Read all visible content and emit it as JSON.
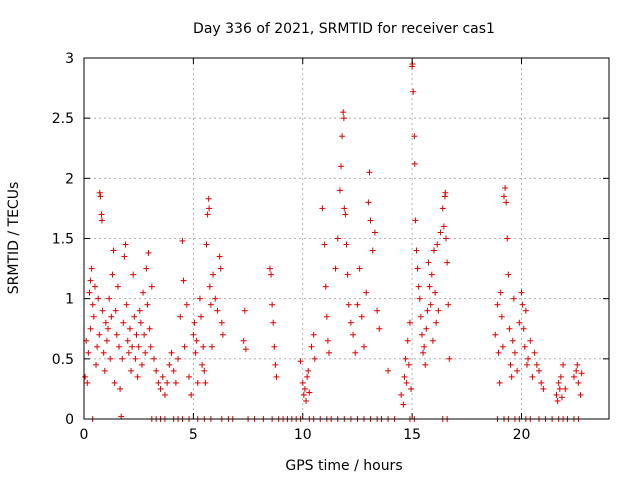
{
  "chart_data": {
    "type": "scatter",
    "title": "Day 336 of 2021, SRMTID for receiver cas1",
    "xlabel": "GPS time / hours",
    "ylabel": "SRMTID / TECUs",
    "xlim": [
      0,
      24
    ],
    "ylim": [
      0,
      3
    ],
    "xticks": [
      0,
      5,
      10,
      15,
      20
    ],
    "yticks": [
      0,
      0.5,
      1,
      1.5,
      2,
      2.5,
      3
    ],
    "xtick_labels": [
      "0",
      "5",
      "10",
      "15",
      "20"
    ],
    "ytick_labels": [
      "0",
      "0.5",
      "1",
      "1.5",
      "2",
      "2.5",
      "3"
    ],
    "grid": true,
    "legend": "none",
    "marker": "+",
    "color": "#dd0000",
    "series": [
      {
        "name": "cas1",
        "points": [
          [
            0.05,
            0.35
          ],
          [
            0.1,
            0.65
          ],
          [
            0.15,
            0.3
          ],
          [
            0.2,
            0.55
          ],
          [
            0.25,
            1.05
          ],
          [
            0.3,
            1.15
          ],
          [
            0.3,
            0.75
          ],
          [
            0.35,
            1.25
          ],
          [
            0.4,
            0.95
          ],
          [
            0.45,
            0.85
          ],
          [
            0.5,
            1.1
          ],
          [
            0.55,
            0.45
          ],
          [
            0.6,
            0.6
          ],
          [
            0.65,
            1.0
          ],
          [
            0.7,
            0.7
          ],
          [
            0.72,
            1.88
          ],
          [
            0.75,
            1.85
          ],
          [
            0.8,
            1.7
          ],
          [
            0.82,
            1.65
          ],
          [
            0.85,
            0.9
          ],
          [
            0.9,
            0.55
          ],
          [
            0.95,
            0.4
          ],
          [
            1.0,
            0.8
          ],
          [
            1.05,
            0.65
          ],
          [
            1.1,
            0.75
          ],
          [
            1.15,
            1.0
          ],
          [
            1.2,
            0.5
          ],
          [
            1.25,
            0.85
          ],
          [
            1.3,
            1.2
          ],
          [
            1.35,
            1.4
          ],
          [
            1.4,
            0.3
          ],
          [
            1.45,
            0.9
          ],
          [
            1.5,
            0.7
          ],
          [
            1.55,
            1.1
          ],
          [
            1.6,
            0.6
          ],
          [
            1.65,
            0.25
          ],
          [
            1.7,
            0.02
          ],
          [
            1.75,
            0.5
          ],
          [
            1.8,
            0.8
          ],
          [
            1.85,
            1.35
          ],
          [
            1.9,
            1.45
          ],
          [
            1.95,
            0.95
          ],
          [
            2.0,
            0.65
          ],
          [
            2.05,
            0.55
          ],
          [
            2.1,
            0.75
          ],
          [
            2.15,
            0.4
          ],
          [
            2.2,
            0.6
          ],
          [
            2.25,
            1.2
          ],
          [
            2.3,
            0.85
          ],
          [
            2.35,
            0.5
          ],
          [
            2.4,
            0.7
          ],
          [
            2.45,
            0.35
          ],
          [
            2.5,
            0.6
          ],
          [
            2.55,
            0.9
          ],
          [
            2.6,
            0.8
          ],
          [
            2.65,
            0.45
          ],
          [
            2.7,
            1.05
          ],
          [
            2.75,
            0.7
          ],
          [
            2.8,
            0.55
          ],
          [
            2.85,
            1.25
          ],
          [
            2.9,
            0.95
          ],
          [
            2.95,
            1.38
          ],
          [
            3.0,
            0.75
          ],
          [
            3.05,
            0.6
          ],
          [
            3.1,
            1.1
          ],
          [
            3.2,
            0.5
          ],
          [
            3.3,
            0.4
          ],
          [
            3.4,
            0.3
          ],
          [
            3.5,
            0.25
          ],
          [
            3.6,
            0.35
          ],
          [
            3.7,
            0.2
          ],
          [
            3.8,
            0.3
          ],
          [
            3.9,
            0.45
          ],
          [
            4.0,
            0.55
          ],
          [
            4.1,
            0.4
          ],
          [
            4.2,
            0.3
          ],
          [
            4.3,
            0.5
          ],
          [
            4.4,
            0.85
          ],
          [
            4.5,
            1.48
          ],
          [
            4.55,
            1.15
          ],
          [
            4.6,
            0.6
          ],
          [
            4.7,
            0.95
          ],
          [
            4.8,
            0.35
          ],
          [
            4.9,
            0.2
          ],
          [
            5.0,
            0.7
          ],
          [
            5.05,
            0.8
          ],
          [
            5.1,
            0.55
          ],
          [
            5.15,
            0.65
          ],
          [
            5.2,
            0.3
          ],
          [
            5.3,
            1.0
          ],
          [
            5.35,
            0.85
          ],
          [
            5.4,
            0.45
          ],
          [
            5.45,
            0.6
          ],
          [
            5.5,
            0.4
          ],
          [
            5.55,
            0.3
          ],
          [
            5.6,
            1.45
          ],
          [
            5.65,
            1.7
          ],
          [
            5.7,
            1.83
          ],
          [
            5.72,
            1.75
          ],
          [
            5.75,
            1.1
          ],
          [
            5.8,
            0.95
          ],
          [
            5.85,
            0.6
          ],
          [
            5.9,
            1.2
          ],
          [
            6.0,
            1.0
          ],
          [
            6.1,
            0.9
          ],
          [
            6.2,
            1.35
          ],
          [
            6.25,
            1.25
          ],
          [
            6.3,
            0.8
          ],
          [
            6.35,
            0.7
          ],
          [
            7.3,
            0.65
          ],
          [
            7.35,
            0.9
          ],
          [
            7.4,
            0.58
          ],
          [
            8.5,
            1.25
          ],
          [
            8.55,
            1.2
          ],
          [
            8.6,
            0.95
          ],
          [
            8.65,
            0.8
          ],
          [
            8.7,
            0.6
          ],
          [
            8.75,
            0.45
          ],
          [
            8.8,
            0.35
          ],
          [
            9.9,
            0.48
          ],
          [
            10.0,
            0.3
          ],
          [
            10.05,
            0.2
          ],
          [
            10.1,
            0.25
          ],
          [
            10.15,
            0.15
          ],
          [
            10.2,
            0.35
          ],
          [
            10.25,
            0.4
          ],
          [
            10.3,
            0.22
          ],
          [
            10.4,
            0.6
          ],
          [
            10.5,
            0.7
          ],
          [
            10.55,
            0.5
          ],
          [
            10.9,
            1.75
          ],
          [
            11.0,
            1.45
          ],
          [
            11.05,
            1.1
          ],
          [
            11.1,
            0.85
          ],
          [
            11.15,
            0.65
          ],
          [
            11.2,
            0.55
          ],
          [
            11.5,
            1.25
          ],
          [
            11.6,
            1.5
          ],
          [
            11.7,
            1.9
          ],
          [
            11.75,
            2.1
          ],
          [
            11.8,
            2.35
          ],
          [
            11.85,
            2.55
          ],
          [
            11.88,
            2.5
          ],
          [
            11.9,
            1.75
          ],
          [
            11.95,
            1.7
          ],
          [
            12.0,
            1.45
          ],
          [
            12.05,
            1.2
          ],
          [
            12.1,
            0.95
          ],
          [
            12.2,
            0.8
          ],
          [
            12.3,
            0.7
          ],
          [
            12.4,
            0.55
          ],
          [
            12.5,
            0.95
          ],
          [
            12.6,
            1.25
          ],
          [
            12.7,
            0.85
          ],
          [
            12.8,
            0.6
          ],
          [
            12.9,
            1.05
          ],
          [
            13.0,
            1.8
          ],
          [
            13.05,
            2.05
          ],
          [
            13.1,
            1.65
          ],
          [
            13.2,
            1.4
          ],
          [
            13.3,
            1.55
          ],
          [
            13.4,
            0.9
          ],
          [
            13.5,
            0.75
          ],
          [
            13.9,
            0.4
          ],
          [
            14.5,
            0.2
          ],
          [
            14.6,
            0.12
          ],
          [
            14.65,
            0.35
          ],
          [
            14.7,
            0.5
          ],
          [
            14.75,
            0.3
          ],
          [
            14.8,
            0.65
          ],
          [
            14.85,
            0.45
          ],
          [
            14.9,
            0.8
          ],
          [
            14.95,
            0.25
          ],
          [
            15.0,
            2.93
          ],
          [
            15.02,
            2.95
          ],
          [
            15.05,
            2.72
          ],
          [
            15.1,
            2.35
          ],
          [
            15.12,
            2.12
          ],
          [
            15.15,
            1.65
          ],
          [
            15.2,
            1.4
          ],
          [
            15.25,
            1.25
          ],
          [
            15.3,
            1.1
          ],
          [
            15.35,
            1.0
          ],
          [
            15.4,
            0.85
          ],
          [
            15.45,
            0.7
          ],
          [
            15.5,
            0.55
          ],
          [
            15.55,
            0.6
          ],
          [
            15.6,
            0.45
          ],
          [
            15.65,
            0.75
          ],
          [
            15.7,
            0.9
          ],
          [
            15.75,
            1.3
          ],
          [
            15.8,
            1.1
          ],
          [
            15.85,
            0.95
          ],
          [
            15.9,
            1.2
          ],
          [
            15.95,
            0.65
          ],
          [
            16.0,
            1.4
          ],
          [
            16.05,
            1.05
          ],
          [
            16.1,
            0.8
          ],
          [
            16.15,
            1.45
          ],
          [
            16.2,
            0.9
          ],
          [
            16.3,
            1.55
          ],
          [
            16.4,
            1.75
          ],
          [
            16.45,
            1.6
          ],
          [
            16.5,
            1.85
          ],
          [
            16.52,
            1.88
          ],
          [
            16.55,
            1.5
          ],
          [
            16.6,
            1.3
          ],
          [
            16.65,
            0.95
          ],
          [
            16.7,
            0.5
          ],
          [
            18.8,
            0.7
          ],
          [
            18.9,
            0.95
          ],
          [
            18.95,
            0.55
          ],
          [
            19.0,
            0.3
          ],
          [
            19.05,
            1.05
          ],
          [
            19.1,
            0.85
          ],
          [
            19.15,
            0.6
          ],
          [
            19.2,
            1.85
          ],
          [
            19.25,
            1.92
          ],
          [
            19.3,
            1.8
          ],
          [
            19.35,
            1.5
          ],
          [
            19.4,
            1.2
          ],
          [
            19.45,
            0.75
          ],
          [
            19.5,
            0.45
          ],
          [
            19.55,
            0.35
          ],
          [
            19.6,
            0.65
          ],
          [
            19.65,
            1.0
          ],
          [
            19.7,
            0.55
          ],
          [
            19.8,
            0.4
          ],
          [
            19.9,
            0.8
          ],
          [
            20.0,
            1.05
          ],
          [
            20.05,
            0.95
          ],
          [
            20.1,
            0.75
          ],
          [
            20.15,
            0.6
          ],
          [
            20.2,
            0.9
          ],
          [
            20.25,
            0.45
          ],
          [
            20.3,
            0.5
          ],
          [
            20.4,
            0.65
          ],
          [
            20.5,
            0.35
          ],
          [
            20.6,
            0.55
          ],
          [
            20.7,
            0.45
          ],
          [
            20.8,
            0.4
          ],
          [
            20.9,
            0.3
          ],
          [
            21.0,
            0.25
          ],
          [
            21.6,
            0.2
          ],
          [
            21.65,
            0.15
          ],
          [
            21.7,
            0.3
          ],
          [
            21.75,
            0.25
          ],
          [
            21.8,
            0.35
          ],
          [
            21.85,
            0.18
          ],
          [
            21.9,
            0.45
          ],
          [
            22.0,
            0.25
          ],
          [
            22.4,
            0.35
          ],
          [
            22.5,
            0.4
          ],
          [
            22.55,
            0.45
          ],
          [
            22.6,
            0.3
          ],
          [
            22.7,
            0.2
          ],
          [
            22.75,
            0.38
          ],
          [
            0.4,
            0
          ],
          [
            3.1,
            0
          ],
          [
            3.3,
            0
          ],
          [
            3.5,
            0
          ],
          [
            3.7,
            0
          ],
          [
            4.1,
            0
          ],
          [
            4.3,
            0
          ],
          [
            4.5,
            0
          ],
          [
            4.8,
            0
          ],
          [
            5.2,
            0
          ],
          [
            5.5,
            0
          ],
          [
            5.8,
            0
          ],
          [
            6.3,
            0
          ],
          [
            6.6,
            0
          ],
          [
            6.8,
            0
          ],
          [
            7.5,
            0
          ],
          [
            7.8,
            0
          ],
          [
            8.2,
            0
          ],
          [
            8.6,
            0
          ],
          [
            8.9,
            0
          ],
          [
            9.1,
            0
          ],
          [
            9.3,
            0
          ],
          [
            9.5,
            0
          ],
          [
            9.7,
            0
          ],
          [
            9.9,
            0
          ],
          [
            10.3,
            0
          ],
          [
            10.5,
            0
          ],
          [
            10.8,
            0
          ],
          [
            11.1,
            0
          ],
          [
            11.3,
            0
          ],
          [
            11.6,
            0
          ],
          [
            11.9,
            0
          ],
          [
            12.2,
            0
          ],
          [
            12.5,
            0
          ],
          [
            12.8,
            0
          ],
          [
            13.1,
            0
          ],
          [
            13.4,
            0
          ],
          [
            13.6,
            0
          ],
          [
            13.9,
            0
          ],
          [
            14.2,
            0
          ],
          [
            14.9,
            0
          ],
          [
            15.1,
            0
          ],
          [
            16.4,
            0
          ],
          [
            16.6,
            0
          ],
          [
            18.9,
            0
          ],
          [
            19.2,
            0
          ],
          [
            19.4,
            0
          ],
          [
            19.7,
            0
          ],
          [
            19.9,
            0
          ],
          [
            20.2,
            0
          ],
          [
            20.4,
            0
          ],
          [
            20.8,
            0
          ],
          [
            21.1,
            0
          ],
          [
            21.4,
            0
          ],
          [
            21.7,
            0
          ],
          [
            21.9,
            0
          ],
          [
            22.1,
            0
          ],
          [
            22.4,
            0
          ],
          [
            22.6,
            0
          ]
        ]
      }
    ]
  }
}
